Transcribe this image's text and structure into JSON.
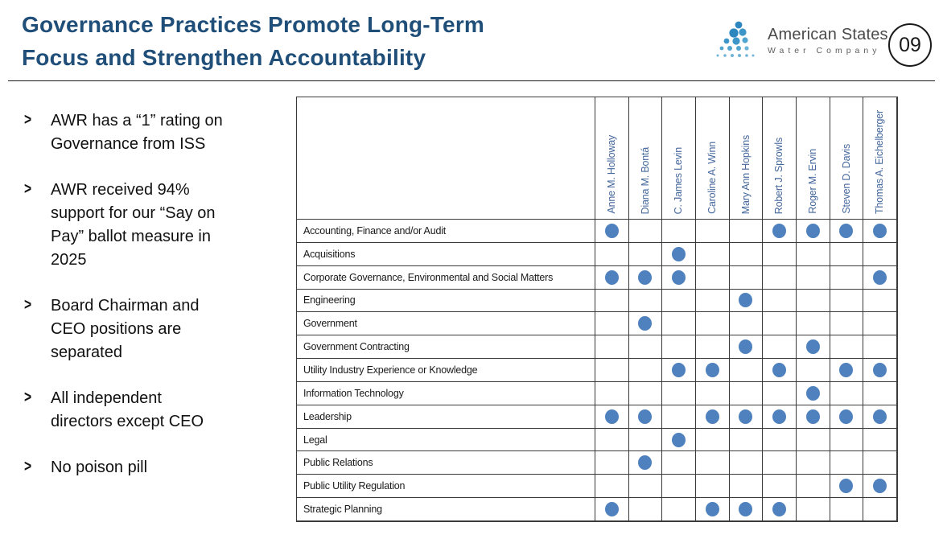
{
  "slide": {
    "title_line1": "Governance Practices Promote Long-Term",
    "title_line2": "Focus and Strengthen Accountability",
    "slide_number": "09"
  },
  "logo": {
    "name": "American States",
    "subname": "Water Company"
  },
  "icons": {
    "chevron": ">"
  },
  "bullets": [
    "AWR has a “1” rating on\nGovernance from ISS",
    "AWR received 94%\nsupport for our “Say on\nPay” ballot measure in\n2025",
    "Board Chairman and\nCEO positions are\nseparated",
    "All independent\ndirectors except CEO",
    "No poison pill"
  ],
  "matrix": {
    "columns": [
      "Anne M. Holloway",
      "Diana M. Bontá",
      "C. James Levin",
      "Caroline A. Winn",
      "Mary Ann Hopkins",
      "Robert J. Sprowls",
      "Roger M. Ervin",
      "Steven D. Davis",
      "Thomas A. Eichelberger"
    ],
    "rows": [
      {
        "label": "Accounting, Finance and/or Audit",
        "dots": [
          1,
          0,
          0,
          0,
          0,
          1,
          1,
          1,
          1
        ]
      },
      {
        "label": "Acquisitions",
        "dots": [
          0,
          0,
          1,
          0,
          0,
          0,
          0,
          0,
          0
        ]
      },
      {
        "label": "Corporate Governance, Environmental and Social Matters",
        "dots": [
          1,
          1,
          1,
          0,
          0,
          0,
          0,
          0,
          1
        ]
      },
      {
        "label": "Engineering",
        "dots": [
          0,
          0,
          0,
          0,
          1,
          0,
          0,
          0,
          0
        ]
      },
      {
        "label": "Government",
        "dots": [
          0,
          1,
          0,
          0,
          0,
          0,
          0,
          0,
          0
        ]
      },
      {
        "label": "Government Contracting",
        "dots": [
          0,
          0,
          0,
          0,
          1,
          0,
          1,
          0,
          0
        ]
      },
      {
        "label": "Utility Industry Experience or Knowledge",
        "dots": [
          0,
          0,
          1,
          1,
          0,
          1,
          0,
          1,
          1
        ]
      },
      {
        "label": "Information Technology",
        "dots": [
          0,
          0,
          0,
          0,
          0,
          0,
          1,
          0,
          0
        ]
      },
      {
        "label": "Leadership",
        "dots": [
          1,
          1,
          0,
          1,
          1,
          1,
          1,
          1,
          1
        ]
      },
      {
        "label": "Legal",
        "dots": [
          0,
          0,
          1,
          0,
          0,
          0,
          0,
          0,
          0
        ]
      },
      {
        "label": "Public Relations",
        "dots": [
          0,
          1,
          0,
          0,
          0,
          0,
          0,
          0,
          0
        ]
      },
      {
        "label": "Public Utility Regulation",
        "dots": [
          0,
          0,
          0,
          0,
          0,
          0,
          0,
          1,
          1
        ]
      },
      {
        "label": "Strategic Planning",
        "dots": [
          1,
          0,
          0,
          1,
          1,
          1,
          0,
          0,
          0
        ]
      }
    ]
  },
  "colors": {
    "title": "#1F4E79",
    "dot": "#4E81BD",
    "header_name": "#44679C"
  }
}
